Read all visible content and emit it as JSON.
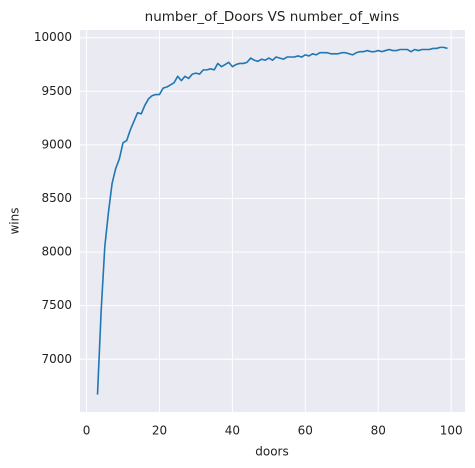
{
  "chart_data": {
    "type": "line",
    "title": "number_of_Doors VS number_of_wins",
    "xlabel": "doors",
    "ylabel": "wins",
    "x": [
      3,
      4,
      5,
      6,
      7,
      8,
      9,
      10,
      11,
      12,
      13,
      14,
      15,
      16,
      17,
      18,
      19,
      20,
      21,
      22,
      23,
      24,
      25,
      26,
      27,
      28,
      29,
      30,
      31,
      32,
      33,
      34,
      35,
      36,
      37,
      38,
      39,
      40,
      41,
      42,
      43,
      44,
      45,
      46,
      47,
      48,
      49,
      50,
      51,
      52,
      53,
      54,
      55,
      56,
      57,
      58,
      59,
      60,
      61,
      62,
      63,
      64,
      65,
      66,
      67,
      68,
      69,
      70,
      71,
      72,
      73,
      74,
      75,
      76,
      77,
      78,
      79,
      80,
      81,
      82,
      83,
      84,
      85,
      86,
      87,
      88,
      89,
      90,
      91,
      92,
      93,
      94,
      95,
      96,
      97,
      98,
      99
    ],
    "series": [
      {
        "name": "wins",
        "color": "#1f77b4",
        "values": [
          6670,
          7450,
          8050,
          8370,
          8640,
          8780,
          8870,
          9020,
          9040,
          9140,
          9220,
          9300,
          9290,
          9370,
          9430,
          9460,
          9470,
          9470,
          9530,
          9540,
          9560,
          9580,
          9640,
          9600,
          9640,
          9620,
          9660,
          9670,
          9660,
          9700,
          9700,
          9710,
          9700,
          9760,
          9730,
          9750,
          9770,
          9730,
          9750,
          9760,
          9760,
          9770,
          9810,
          9790,
          9780,
          9800,
          9790,
          9810,
          9790,
          9820,
          9810,
          9800,
          9820,
          9820,
          9820,
          9830,
          9820,
          9840,
          9830,
          9850,
          9840,
          9860,
          9860,
          9860,
          9850,
          9850,
          9850,
          9860,
          9860,
          9850,
          9840,
          9860,
          9870,
          9870,
          9880,
          9870,
          9870,
          9880,
          9870,
          9880,
          9890,
          9880,
          9880,
          9890,
          9890,
          9890,
          9870,
          9890,
          9880,
          9890,
          9890,
          9890,
          9900,
          9900,
          9910,
          9910,
          9900
        ]
      }
    ],
    "xlim": [
      -1.8,
      103.8
    ],
    "ylim": [
      6508,
      10072
    ],
    "xticks": [
      0,
      20,
      40,
      60,
      80,
      100
    ],
    "yticks": [
      7000,
      7500,
      8000,
      8500,
      9000,
      9500,
      10000
    ],
    "grid": true
  }
}
